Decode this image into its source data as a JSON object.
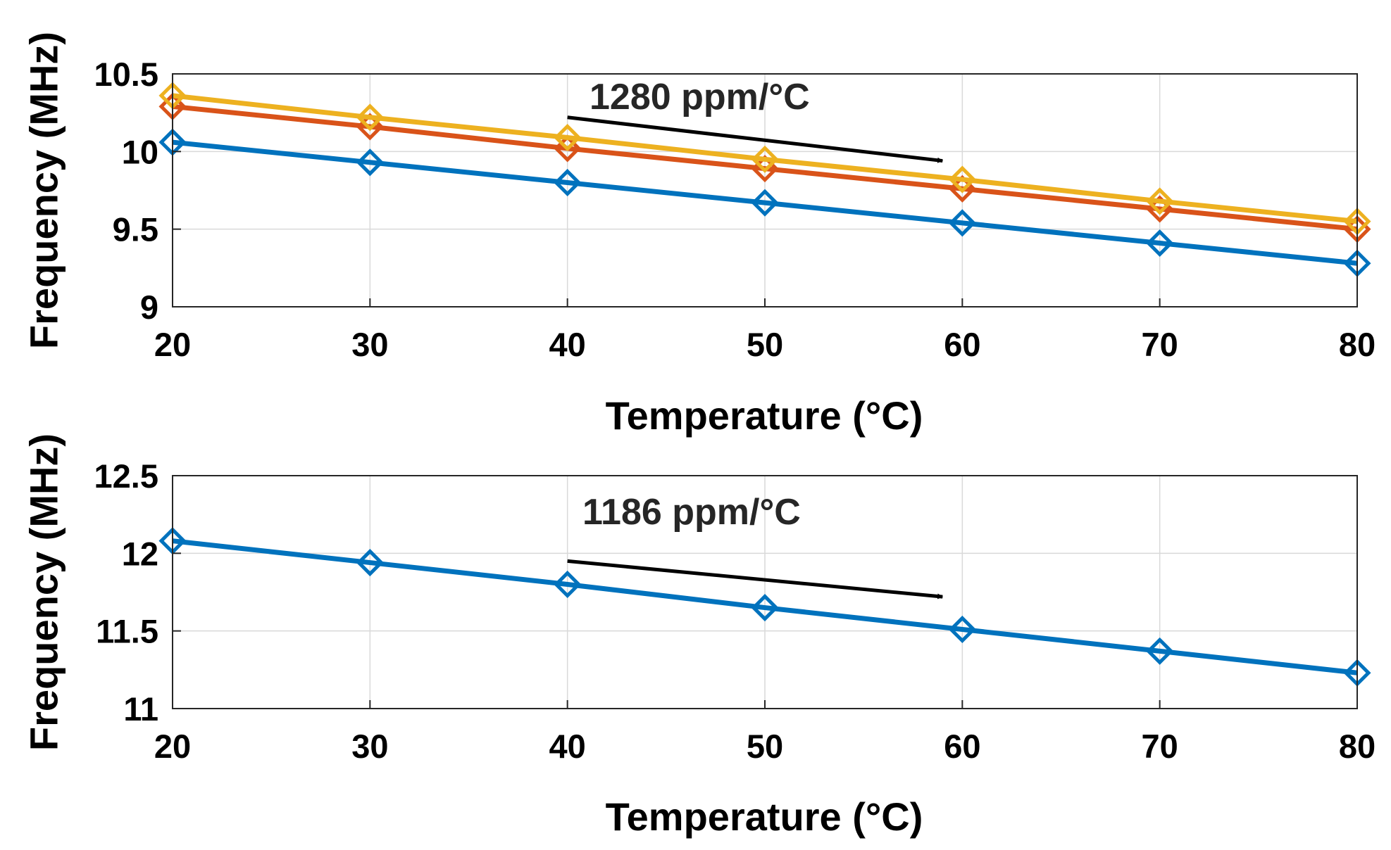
{
  "chart_data": [
    {
      "type": "line",
      "xlabel": "Temperature (°C)",
      "ylabel": "Frequency (MHz)",
      "xlim": [
        20,
        80
      ],
      "ylim": [
        9,
        10.5
      ],
      "x_ticks": [
        "20",
        "30",
        "40",
        "50",
        "60",
        "70",
        "80"
      ],
      "y_ticks": [
        "9",
        "9.5",
        "10",
        "10.5"
      ],
      "grid": true,
      "marker": "diamond",
      "x": [
        20,
        30,
        40,
        50,
        60,
        70,
        80
      ],
      "series": [
        {
          "color": "#0072BD",
          "values": [
            10.06,
            9.93,
            9.8,
            9.67,
            9.54,
            9.41,
            9.28
          ]
        },
        {
          "color": "#D95319",
          "values": [
            10.29,
            10.16,
            10.02,
            9.89,
            9.76,
            9.63,
            9.5
          ]
        },
        {
          "color": "#EDB120",
          "values": [
            10.36,
            10.22,
            10.09,
            9.95,
            9.82,
            9.68,
            9.55
          ]
        }
      ],
      "annotations": [
        {
          "text": "1280 ppm/°C",
          "arrow_from": [
            40,
            10.22
          ],
          "arrow_to": [
            59,
            9.94
          ]
        }
      ]
    },
    {
      "type": "line",
      "xlabel": "Temperature (°C)",
      "ylabel": "Frequency (MHz)",
      "xlim": [
        20,
        80
      ],
      "ylim": [
        11,
        12.5
      ],
      "x_ticks": [
        "20",
        "30",
        "40",
        "50",
        "60",
        "70",
        "80"
      ],
      "y_ticks": [
        "11",
        "11.5",
        "12",
        "12.5"
      ],
      "grid": true,
      "marker": "diamond",
      "x": [
        20,
        30,
        40,
        50,
        60,
        70,
        80
      ],
      "series": [
        {
          "color": "#0072BD",
          "values": [
            12.08,
            11.94,
            11.8,
            11.65,
            11.51,
            11.37,
            11.23
          ]
        }
      ],
      "annotations": [
        {
          "text": "1186 ppm/°C",
          "arrow_from": [
            40,
            11.95
          ],
          "arrow_to": [
            59,
            11.72
          ]
        }
      ]
    }
  ]
}
